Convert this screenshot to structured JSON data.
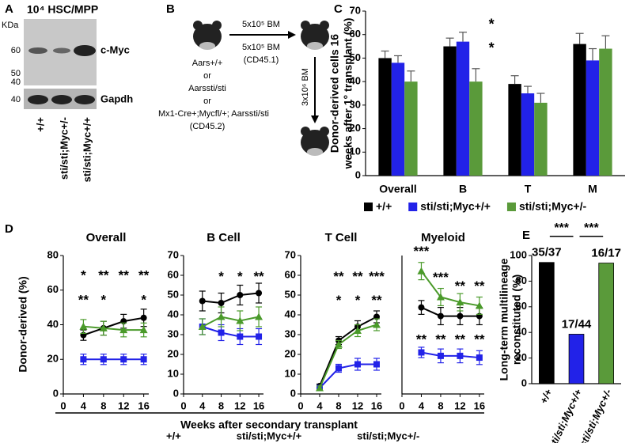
{
  "panel_a": {
    "label": "A",
    "title": "10⁴ HSC/MPP",
    "unit": "KDa",
    "markers": [
      60,
      50,
      40,
      40
    ],
    "bands": [
      "c-Myc",
      "Gapdh"
    ],
    "lanes": [
      "+/+",
      "sti/sti;Myc+/-",
      "sti/sti;Myc+/+"
    ]
  },
  "panel_b": {
    "label": "B",
    "donors": [
      "Aars+/+",
      "or",
      "Aarssti/sti",
      "or",
      "Mx1-Cre+;Mycfl/+; Aarssti/sti",
      "(CD45.2)"
    ],
    "primary": [
      "5x10⁵ BM",
      "5x10⁵ BM",
      "(CD45.1)"
    ],
    "secondary": "3x10⁶ BM"
  },
  "panel_d": {
    "label": "D",
    "ylabel": "Donor-derived (%)",
    "xlabel": "Weeks after secondary transplant",
    "legend": [
      {
        "name": "+/+",
        "color": "#000000"
      },
      {
        "name": "sti/sti;Myc+/+",
        "color": "#2222e8"
      },
      {
        "name": "sti/sti;Myc+/-",
        "color": "#4a9a2a"
      }
    ]
  },
  "chart_data": [
    {
      "type": "bar",
      "panel": "C",
      "ylabel": [
        "Donor-derived cells 16",
        "weeks after 1° transplant (%)"
      ],
      "categories": [
        "Overall",
        "B",
        "T",
        "M"
      ],
      "series": [
        {
          "name": "+/+",
          "color": "#000000",
          "values": [
            50,
            55,
            39,
            56
          ],
          "errors": [
            3,
            3.5,
            3.5,
            4.5
          ]
        },
        {
          "name": "sti/sti;Myc+/+",
          "color": "#2222e8",
          "values": [
            48,
            57,
            35,
            49
          ],
          "errors": [
            3,
            4,
            3,
            5
          ]
        },
        {
          "name": "sti/sti;Myc+/-",
          "color": "#5a9a3a",
          "values": [
            40,
            40,
            31,
            54
          ],
          "errors": [
            4.5,
            5.5,
            4,
            5.5
          ]
        }
      ],
      "ylim": [
        0,
        70
      ],
      "yticks": [
        0,
        10,
        20,
        30,
        40,
        50,
        60,
        70
      ],
      "annotations": [
        {
          "x": "B",
          "y": 64,
          "label": "*",
          "color": "#000000"
        },
        {
          "x": "B",
          "y": 54,
          "label": "*",
          "color": "#2222e8"
        }
      ]
    },
    {
      "type": "line",
      "title": "Overall",
      "x": [
        4,
        8,
        12,
        16
      ],
      "xlim": [
        0,
        17
      ],
      "xticks": [
        0,
        4,
        8,
        12,
        16
      ],
      "ylim": [
        0,
        80
      ],
      "yticks": [
        0,
        20,
        40,
        60,
        80
      ],
      "series": [
        {
          "color": "#000000",
          "marker": "circle",
          "values": [
            34,
            38,
            42,
            44
          ],
          "errors": [
            3,
            4,
            4,
            5
          ]
        },
        {
          "color": "#2222e8",
          "marker": "square",
          "values": [
            20,
            20,
            20,
            20
          ],
          "errors": [
            3,
            3,
            3,
            3
          ]
        },
        {
          "color": "#4a9a2a",
          "marker": "triangle",
          "values": [
            39,
            38,
            37,
            37
          ],
          "errors": [
            4,
            4,
            4,
            4
          ]
        }
      ],
      "annotations": [
        {
          "x": 4,
          "y": 68,
          "label": "*",
          "color": "#000000"
        },
        {
          "x": 8,
          "y": 68,
          "label": "**",
          "color": "#000000"
        },
        {
          "x": 12,
          "y": 68,
          "label": "**",
          "color": "#000000"
        },
        {
          "x": 16,
          "y": 68,
          "label": "**",
          "color": "#000000"
        },
        {
          "x": 4,
          "y": 54,
          "label": "**",
          "color": "#4aa040"
        },
        {
          "x": 8,
          "y": 54,
          "label": "*",
          "color": "#4aa040"
        },
        {
          "x": 16,
          "y": 54,
          "label": "*",
          "color": "#4aa040"
        }
      ]
    },
    {
      "type": "line",
      "title": "B Cell",
      "x": [
        4,
        8,
        12,
        16
      ],
      "xlim": [
        0,
        17
      ],
      "xticks": [
        0,
        4,
        8,
        12,
        16
      ],
      "ylim": [
        0,
        70
      ],
      "yticks": [
        0,
        10,
        20,
        30,
        40,
        50,
        60,
        70
      ],
      "series": [
        {
          "color": "#000000",
          "marker": "circle",
          "values": [
            47,
            46,
            50,
            51
          ],
          "errors": [
            5,
            5,
            5,
            5
          ]
        },
        {
          "color": "#2222e8",
          "marker": "square",
          "values": [
            34,
            31,
            29,
            29
          ],
          "errors": [
            4,
            4,
            4,
            4
          ]
        },
        {
          "color": "#4a9a2a",
          "marker": "triangle",
          "values": [
            34,
            39,
            37,
            39
          ],
          "errors": [
            4,
            5,
            5,
            5
          ]
        }
      ],
      "annotations": [
        {
          "x": 8,
          "y": 59,
          "label": "*",
          "color": "#000000"
        },
        {
          "x": 12,
          "y": 59,
          "label": "*",
          "color": "#000000"
        },
        {
          "x": 16,
          "y": 59,
          "label": "**",
          "color": "#000000"
        }
      ]
    },
    {
      "type": "line",
      "title": "T Cell",
      "x": [
        4,
        8,
        12,
        16
      ],
      "xlim": [
        0,
        17
      ],
      "xticks": [
        0,
        4,
        8,
        12,
        16
      ],
      "ylim": [
        0,
        70
      ],
      "yticks": [
        0,
        10,
        20,
        30,
        40,
        50,
        60,
        70
      ],
      "series": [
        {
          "color": "#000000",
          "marker": "circle",
          "values": [
            4,
            27,
            34,
            39
          ],
          "errors": [
            1,
            2,
            3,
            3
          ]
        },
        {
          "color": "#2222e8",
          "marker": "square",
          "values": [
            3,
            13,
            15,
            15
          ],
          "errors": [
            1,
            2,
            3,
            3
          ]
        },
        {
          "color": "#4a9a2a",
          "marker": "triangle",
          "values": [
            3,
            25,
            32,
            35
          ],
          "errors": [
            1,
            2,
            3,
            3
          ]
        }
      ],
      "annotations": [
        {
          "x": 8,
          "y": 59,
          "label": "**",
          "color": "#000000"
        },
        {
          "x": 12,
          "y": 59,
          "label": "**",
          "color": "#000000"
        },
        {
          "x": 16,
          "y": 59,
          "label": "***",
          "color": "#000000"
        },
        {
          "x": 8,
          "y": 47,
          "label": "*",
          "color": "#4aa040"
        },
        {
          "x": 12,
          "y": 47,
          "label": "*",
          "color": "#4aa040"
        },
        {
          "x": 16,
          "y": 47,
          "label": "**",
          "color": "#4aa040"
        }
      ]
    },
    {
      "type": "line",
      "title": "Myeloid",
      "x": [
        4,
        8,
        12,
        16
      ],
      "xlim": [
        0,
        17
      ],
      "xticks": [
        0,
        4,
        8,
        12,
        16
      ],
      "ylim": [
        0,
        80
      ],
      "series": [
        {
          "color": "#000000",
          "marker": "circle",
          "values": [
            50,
            45,
            45,
            45
          ],
          "errors": [
            4,
            5,
            5,
            5
          ]
        },
        {
          "color": "#2222e8",
          "marker": "square",
          "values": [
            24,
            22,
            22,
            21
          ],
          "errors": [
            3,
            4,
            4,
            4
          ]
        },
        {
          "color": "#4a9a2a",
          "marker": "triangle",
          "values": [
            71,
            56,
            53,
            51
          ],
          "errors": [
            5,
            5,
            5,
            5
          ]
        }
      ],
      "annotations": [
        {
          "x": 4,
          "y": 82,
          "label": "***",
          "color": "#4aa040"
        },
        {
          "x": 8,
          "y": 67,
          "label": "***",
          "color": "#4aa040"
        },
        {
          "x": 12,
          "y": 62,
          "label": "**",
          "color": "#4aa040"
        },
        {
          "x": 16,
          "y": 62,
          "label": "**",
          "color": "#4aa040"
        },
        {
          "x": 4,
          "y": 31,
          "label": "**",
          "color": "#000000"
        },
        {
          "x": 8,
          "y": 31,
          "label": "**",
          "color": "#000000"
        },
        {
          "x": 12,
          "y": 31,
          "label": "**",
          "color": "#000000"
        },
        {
          "x": 16,
          "y": 31,
          "label": "**",
          "color": "#000000"
        }
      ]
    },
    {
      "type": "bar",
      "panel": "E",
      "ylabel": [
        "Long-term multilineage",
        "reconstituted (%)"
      ],
      "categories": [
        "+/+",
        "sti/sti;Myc+/+",
        "sti/sti;Myc+/-"
      ],
      "values": [
        94.6,
        38.6,
        94.1
      ],
      "value_labels": [
        "35/37",
        "17/44",
        "16/17"
      ],
      "colors": [
        "#000000",
        "#2222e8",
        "#5a9a3a"
      ],
      "ylim": [
        0,
        100
      ],
      "yticks": [
        0,
        20,
        40,
        60,
        80,
        100
      ],
      "brackets": [
        {
          "label": "***",
          "y": 115
        },
        {
          "label": "***",
          "y": 115
        }
      ]
    }
  ]
}
